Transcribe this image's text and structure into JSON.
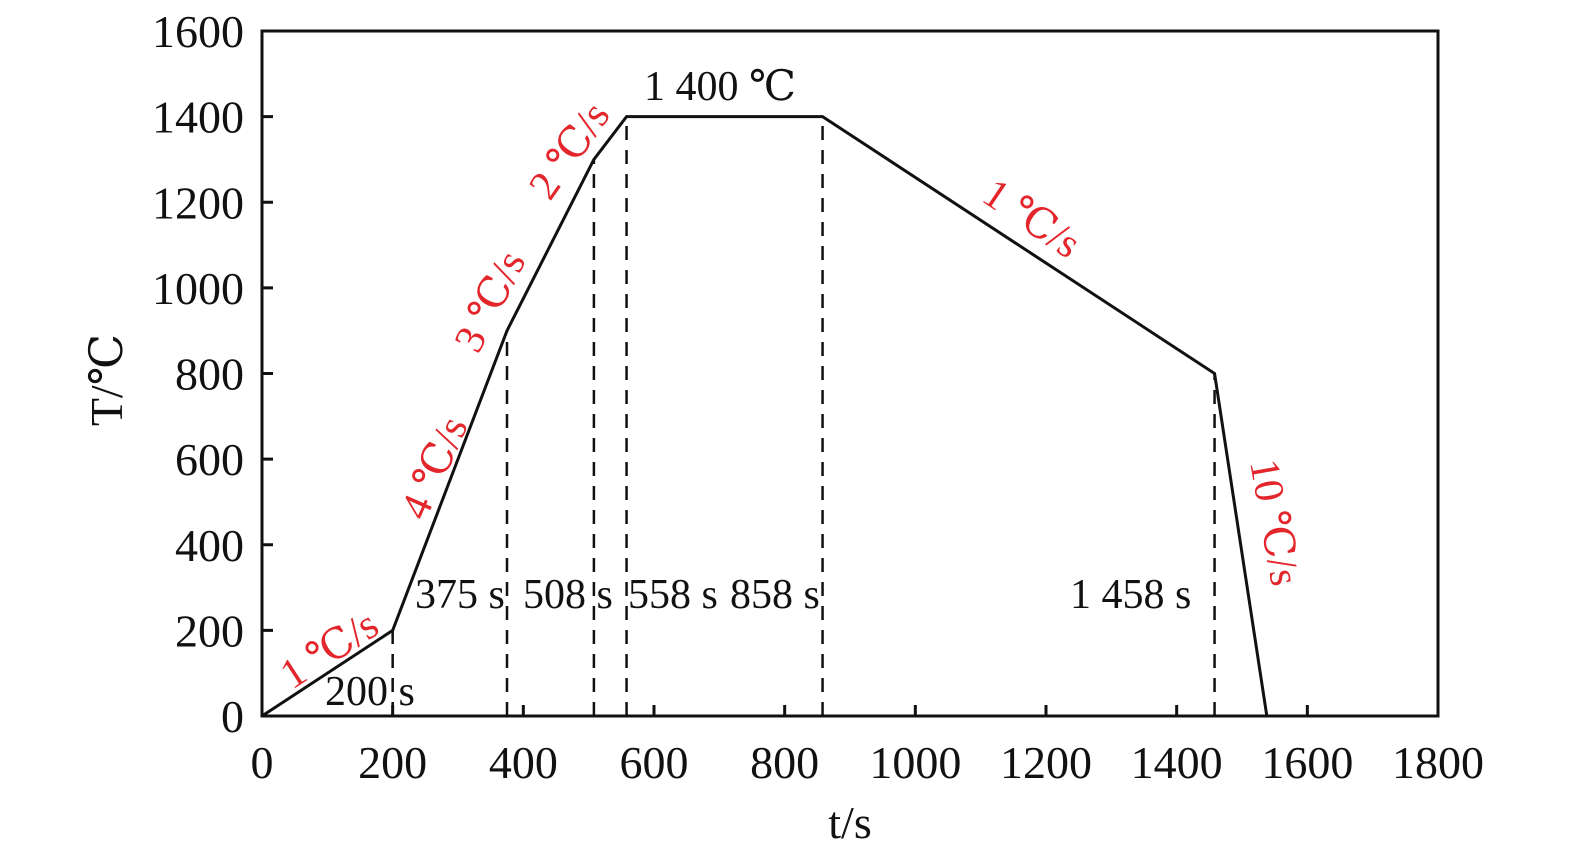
{
  "chart_data": {
    "type": "line",
    "xlabel": "t/s",
    "ylabel": "T/℃",
    "xlim": [
      0,
      1800
    ],
    "ylim": [
      0,
      1600
    ],
    "xticks": [
      0,
      200,
      400,
      600,
      800,
      1000,
      1200,
      1400,
      1600,
      1800
    ],
    "yticks": [
      0,
      200,
      400,
      600,
      800,
      1000,
      1200,
      1400,
      1600
    ],
    "grid": false,
    "series": [
      {
        "x": [
          0,
          200,
          375,
          508,
          558,
          858,
          1458,
          1538
        ],
        "y": [
          0,
          200,
          900,
          1300,
          1400,
          1400,
          800,
          0
        ],
        "color": "#111111"
      }
    ],
    "markers": [
      {
        "x": 200,
        "label": "200 s"
      },
      {
        "x": 375,
        "label": "375 s"
      },
      {
        "x": 508,
        "label": "508 s"
      },
      {
        "x": 558,
        "label": "558 s"
      },
      {
        "x": 858,
        "label": "858 s"
      },
      {
        "x": 1458,
        "label": "1 458 s"
      }
    ],
    "plateau_label": "1 400 ℃",
    "rate_labels": [
      "1 ℃/s",
      "4 ℃/s",
      "3 ℃/s",
      "2 ℃/s",
      "1 ℃/s",
      "10 ℃/s"
    ],
    "rate_color": "#e3262b"
  }
}
